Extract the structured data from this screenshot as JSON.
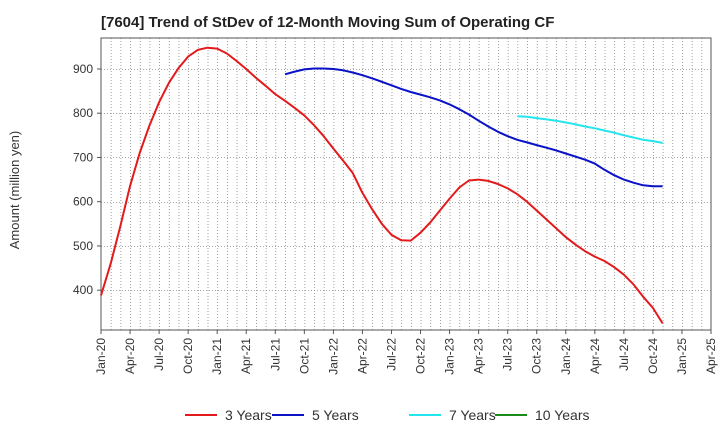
{
  "title": "[7604]  Trend of StDev of 12-Month Moving Sum of Operating CF",
  "chart_data": {
    "type": "line",
    "title": "[7604]  Trend of StDev of 12-Month Moving Sum of Operating CF",
    "ylabel": "Amount (million yen)",
    "xlabel": "",
    "ylim": [
      310,
      970
    ],
    "xlim": [
      "2020-01",
      "2025-04"
    ],
    "y_ticks": [
      400,
      500,
      600,
      700,
      800,
      900
    ],
    "x_ticks": [
      "Jan-20",
      "Apr-20",
      "Jul-20",
      "Oct-20",
      "Jan-21",
      "Apr-21",
      "Jul-21",
      "Oct-21",
      "Jan-22",
      "Apr-22",
      "Jul-22",
      "Oct-22",
      "Jan-23",
      "Apr-23",
      "Jul-23",
      "Oct-23",
      "Jan-24",
      "Apr-24",
      "Jul-24",
      "Oct-24",
      "Jan-25",
      "Apr-25"
    ],
    "grid": true,
    "legend_position": "bottom",
    "series": [
      {
        "name": "3 Years",
        "color": "#e31a1c",
        "points": [
          [
            "2020-01",
            388
          ],
          [
            "2020-02",
            460
          ],
          [
            "2020-03",
            545
          ],
          [
            "2020-04",
            635
          ],
          [
            "2020-05",
            710
          ],
          [
            "2020-06",
            772
          ],
          [
            "2020-07",
            825
          ],
          [
            "2020-08",
            868
          ],
          [
            "2020-09",
            902
          ],
          [
            "2020-10",
            928
          ],
          [
            "2020-11",
            943
          ],
          [
            "2020-12",
            948
          ],
          [
            "2021-01",
            946
          ],
          [
            "2021-02",
            935
          ],
          [
            "2021-03",
            918
          ],
          [
            "2021-04",
            900
          ],
          [
            "2021-05",
            880
          ],
          [
            "2021-06",
            862
          ],
          [
            "2021-07",
            843
          ],
          [
            "2021-08",
            828
          ],
          [
            "2021-09",
            812
          ],
          [
            "2021-10",
            795
          ],
          [
            "2021-11",
            773
          ],
          [
            "2021-12",
            748
          ],
          [
            "2022-01",
            720
          ],
          [
            "2022-02",
            693
          ],
          [
            "2022-03",
            665
          ],
          [
            "2022-04",
            620
          ],
          [
            "2022-05",
            583
          ],
          [
            "2022-06",
            550
          ],
          [
            "2022-07",
            525
          ],
          [
            "2022-08",
            513
          ],
          [
            "2022-09",
            512
          ],
          [
            "2022-10",
            530
          ],
          [
            "2022-11",
            553
          ],
          [
            "2022-12",
            580
          ],
          [
            "2023-01",
            607
          ],
          [
            "2023-02",
            632
          ],
          [
            "2023-03",
            648
          ],
          [
            "2023-04",
            650
          ],
          [
            "2023-05",
            647
          ],
          [
            "2023-06",
            640
          ],
          [
            "2023-07",
            630
          ],
          [
            "2023-08",
            617
          ],
          [
            "2023-09",
            600
          ],
          [
            "2023-10",
            580
          ],
          [
            "2023-11",
            560
          ],
          [
            "2023-12",
            540
          ],
          [
            "2024-01",
            520
          ],
          [
            "2024-02",
            503
          ],
          [
            "2024-03",
            488
          ],
          [
            "2024-04",
            476
          ],
          [
            "2024-05",
            466
          ],
          [
            "2024-06",
            452
          ],
          [
            "2024-07",
            435
          ],
          [
            "2024-08",
            413
          ],
          [
            "2024-09",
            385
          ],
          [
            "2024-10",
            360
          ],
          [
            "2024-11",
            325
          ]
        ]
      },
      {
        "name": "5 Years",
        "color": "#0a12c8",
        "points": [
          [
            "2021-08",
            888
          ],
          [
            "2021-09",
            894
          ],
          [
            "2021-10",
            899
          ],
          [
            "2021-11",
            901
          ],
          [
            "2021-12",
            901
          ],
          [
            "2022-01",
            900
          ],
          [
            "2022-02",
            897
          ],
          [
            "2022-03",
            892
          ],
          [
            "2022-04",
            886
          ],
          [
            "2022-05",
            879
          ],
          [
            "2022-06",
            871
          ],
          [
            "2022-07",
            863
          ],
          [
            "2022-08",
            855
          ],
          [
            "2022-09",
            848
          ],
          [
            "2022-10",
            842
          ],
          [
            "2022-11",
            836
          ],
          [
            "2022-12",
            829
          ],
          [
            "2023-01",
            820
          ],
          [
            "2023-02",
            809
          ],
          [
            "2023-03",
            797
          ],
          [
            "2023-04",
            783
          ],
          [
            "2023-05",
            770
          ],
          [
            "2023-06",
            758
          ],
          [
            "2023-07",
            748
          ],
          [
            "2023-08",
            740
          ],
          [
            "2023-09",
            734
          ],
          [
            "2023-10",
            728
          ],
          [
            "2023-11",
            722
          ],
          [
            "2023-12",
            716
          ],
          [
            "2024-01",
            709
          ],
          [
            "2024-02",
            702
          ],
          [
            "2024-03",
            695
          ],
          [
            "2024-04",
            686
          ],
          [
            "2024-05",
            672
          ],
          [
            "2024-06",
            660
          ],
          [
            "2024-07",
            650
          ],
          [
            "2024-08",
            643
          ],
          [
            "2024-09",
            637
          ],
          [
            "2024-10",
            635
          ],
          [
            "2024-11",
            635
          ]
        ]
      },
      {
        "name": "7 Years",
        "color": "#22e5ee",
        "points": [
          [
            "2023-08",
            793
          ],
          [
            "2023-09",
            792
          ],
          [
            "2023-10",
            789
          ],
          [
            "2023-11",
            786
          ],
          [
            "2023-12",
            783
          ],
          [
            "2024-01",
            779
          ],
          [
            "2024-02",
            775
          ],
          [
            "2024-03",
            770
          ],
          [
            "2024-04",
            766
          ],
          [
            "2024-05",
            761
          ],
          [
            "2024-06",
            756
          ],
          [
            "2024-07",
            750
          ],
          [
            "2024-08",
            745
          ],
          [
            "2024-09",
            740
          ],
          [
            "2024-10",
            737
          ],
          [
            "2024-11",
            733
          ]
        ]
      },
      {
        "name": "10 Years",
        "color": "#1a8a1a",
        "points": []
      }
    ]
  },
  "legend": [
    {
      "label": "3 Years",
      "color": "#e31a1c"
    },
    {
      "label": "5 Years",
      "color": "#0a12c8"
    },
    {
      "label": "7 Years",
      "color": "#22e5ee"
    },
    {
      "label": "10 Years",
      "color": "#1a8a1a"
    }
  ]
}
